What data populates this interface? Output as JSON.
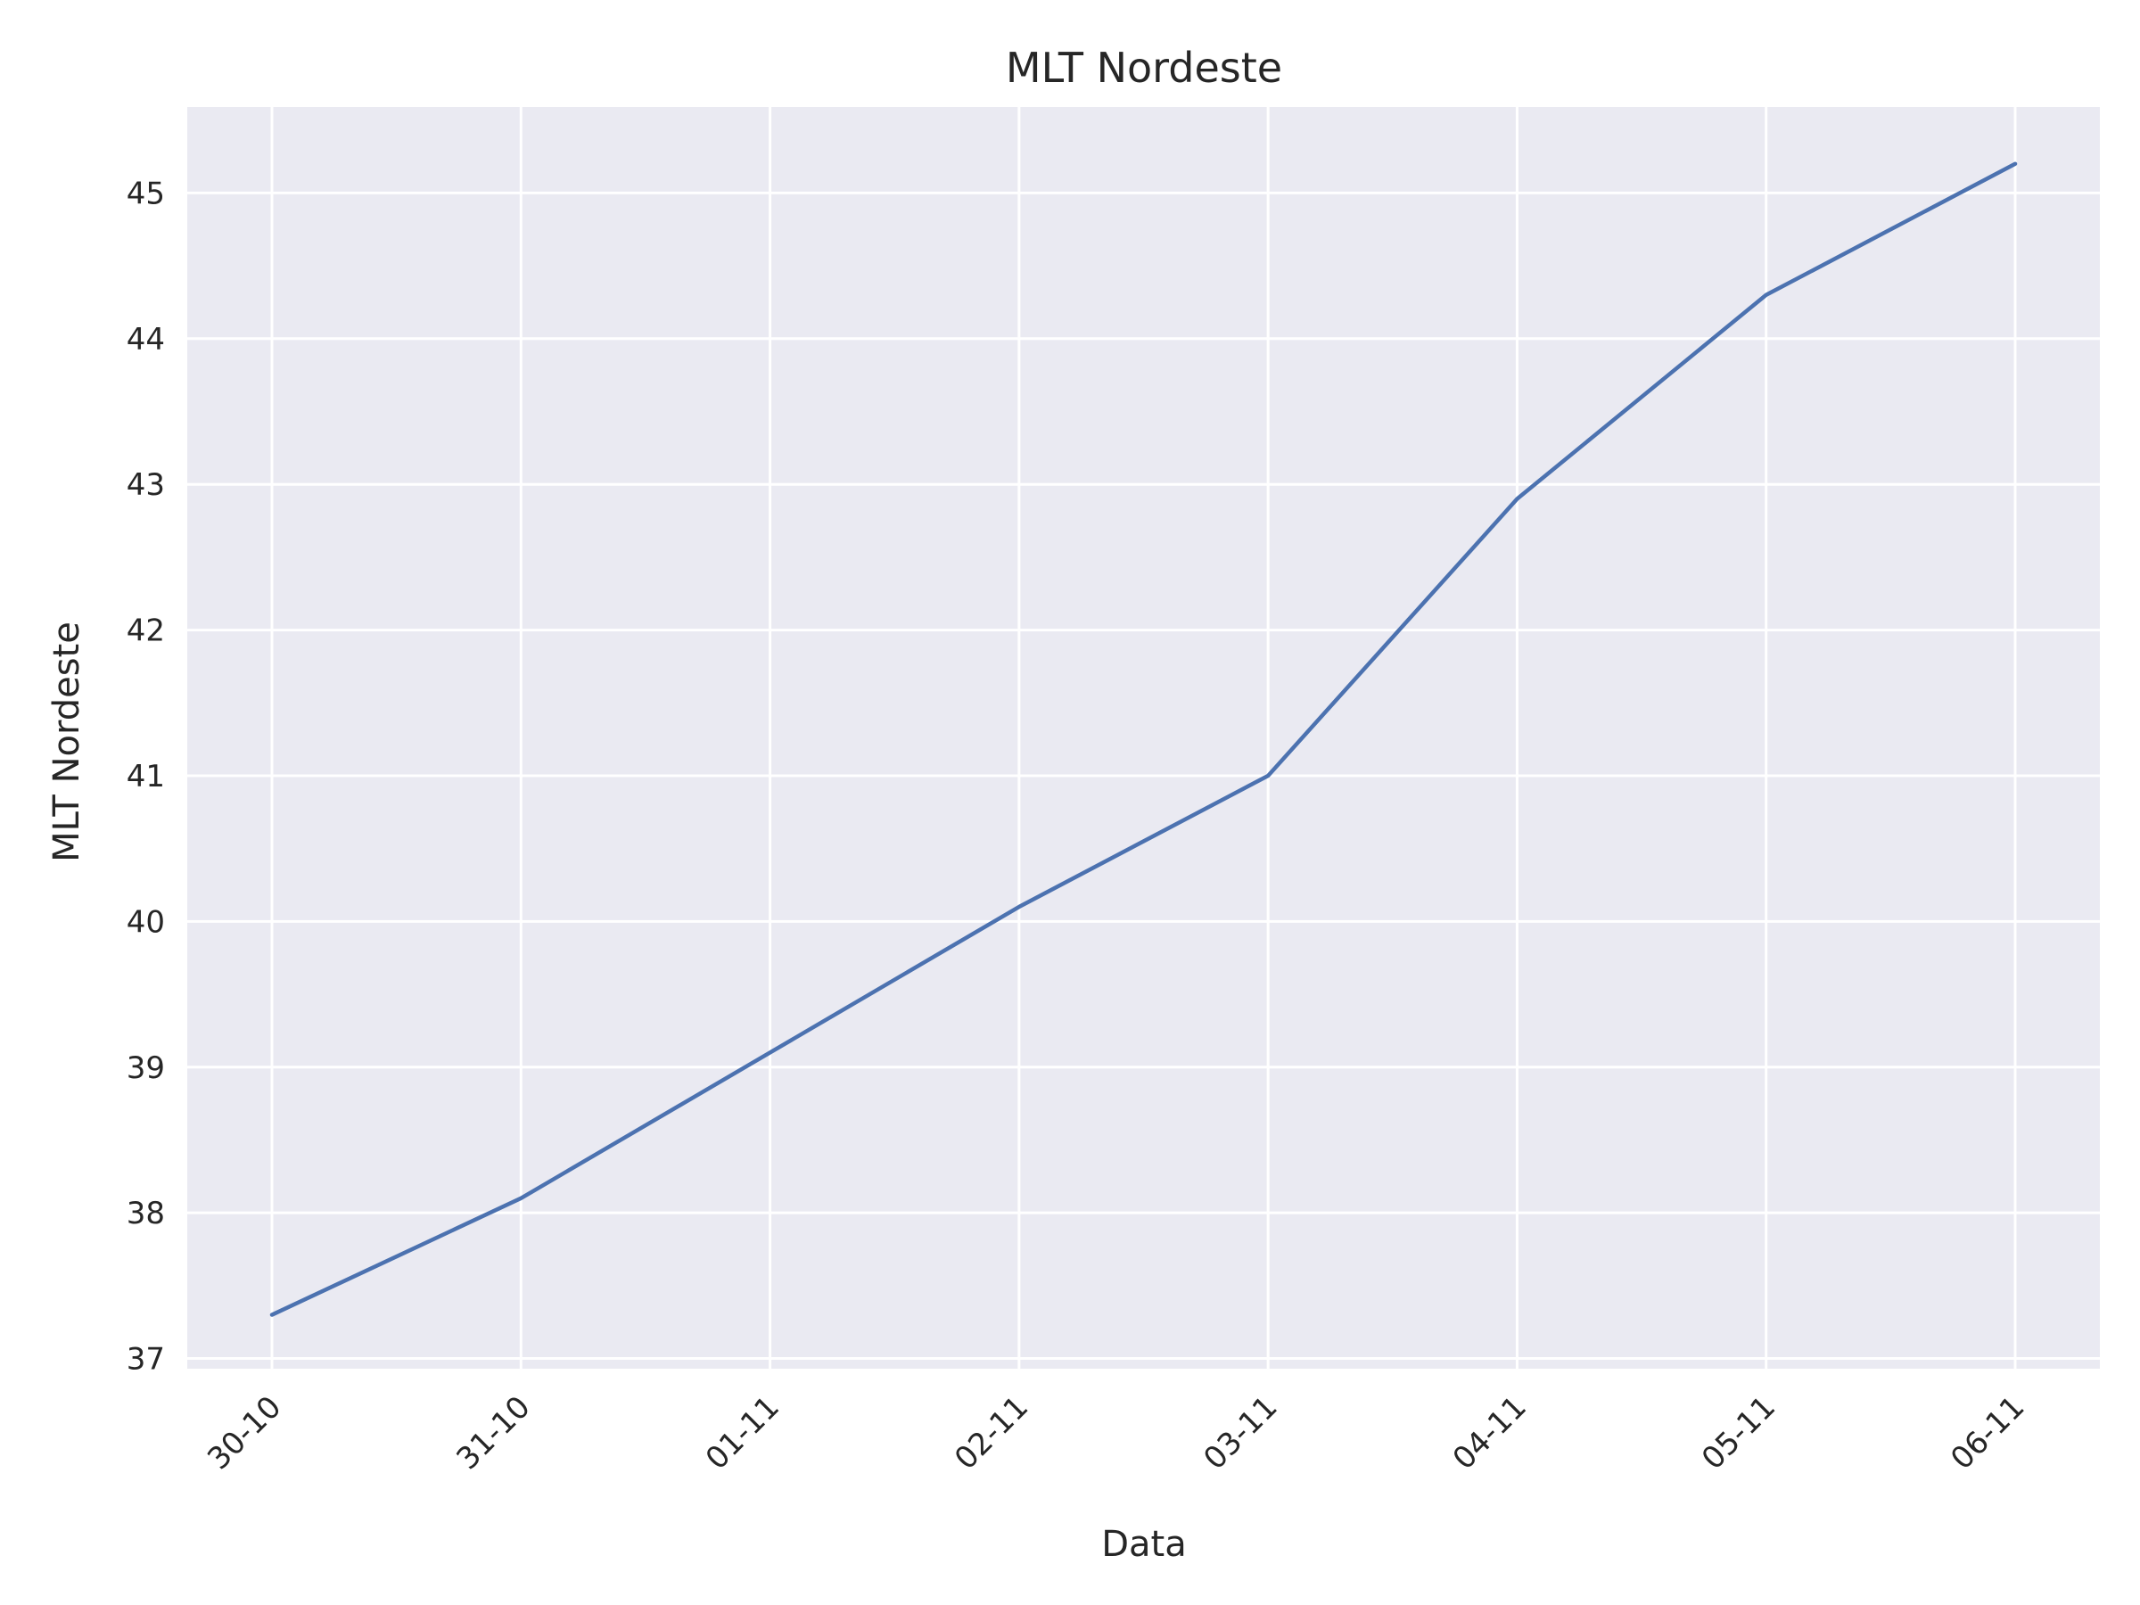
{
  "chart_data": {
    "type": "line",
    "title": "MLT Nordeste",
    "xlabel": "Data",
    "ylabel": "MLT Nordeste",
    "categories": [
      "30-10",
      "31-10",
      "01-11",
      "02-11",
      "03-11",
      "04-11",
      "05-11",
      "06-11"
    ],
    "series": [
      {
        "values": [
          37.3,
          38.1,
          39.1,
          40.1,
          41.0,
          42.9,
          44.3,
          45.2
        ]
      }
    ],
    "yticks": [
      37,
      38,
      39,
      40,
      41,
      42,
      43,
      44,
      45
    ],
    "ylim": [
      36.93,
      45.59
    ],
    "grid": true,
    "legend": "none",
    "colors": {
      "plot_background": "#eaeaf2",
      "grid": "#ffffff",
      "line": "#4c72b0"
    }
  }
}
